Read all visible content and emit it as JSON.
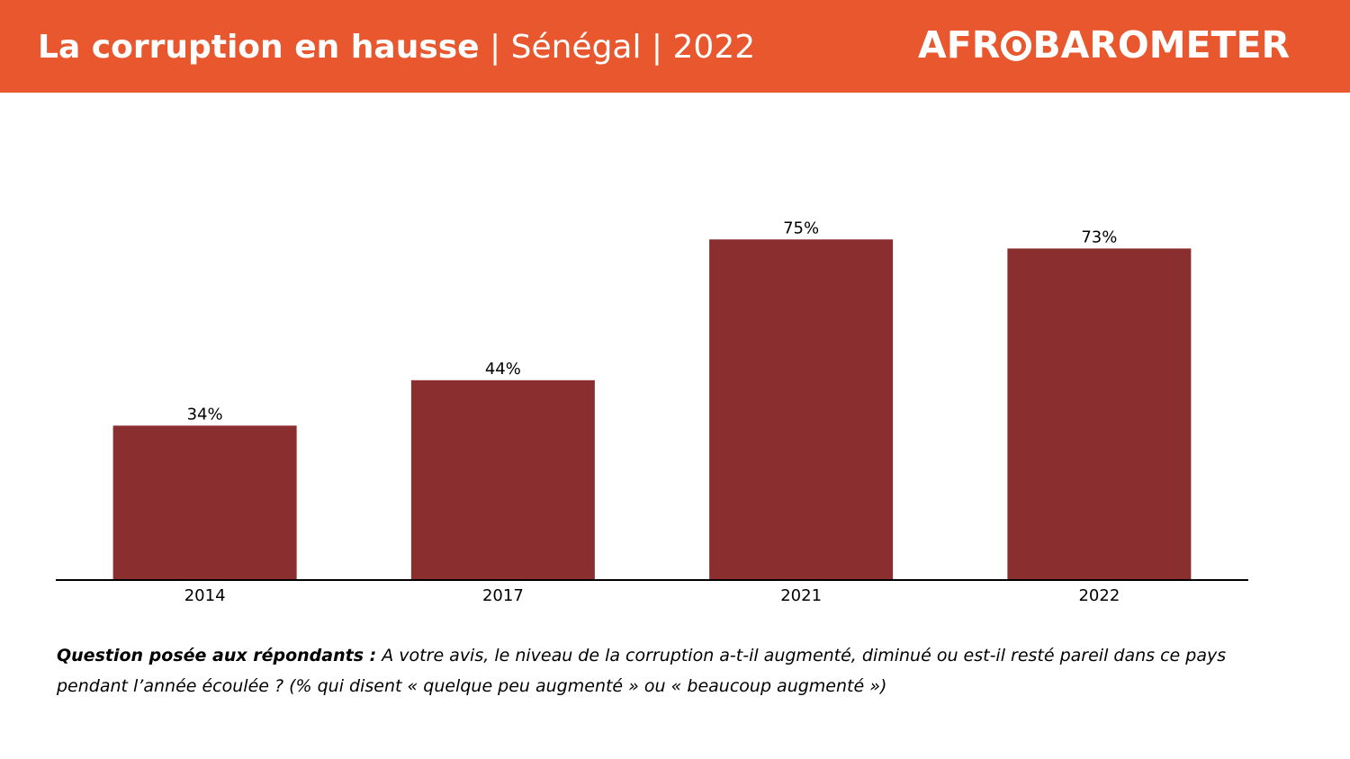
{
  "header": {
    "title_bold": "La corruption en hausse",
    "title_rest": " | Sénégal  | 2022",
    "logo_pre": "AFR",
    "logo_post": "BAROMETER",
    "bg_color": "#e8572e"
  },
  "chart_data": {
    "type": "bar",
    "categories": [
      "2014",
      "2017",
      "2021",
      "2022"
    ],
    "values": [
      34,
      44,
      75,
      73
    ],
    "data_labels": [
      "34%",
      "44%",
      "75%",
      "73%"
    ],
    "title": "",
    "xlabel": "",
    "ylabel": "",
    "ylim": [
      0,
      100
    ],
    "grid": false,
    "bar_color": "#8b2e2f"
  },
  "footnote": {
    "question_label": "Question posée aux répondants :",
    "question_text": " A votre avis, le niveau de la corruption a-t-il augmenté, diminué ou est-il resté pareil dans ce pays pendant l’année écoulée ? (% qui disent « quelque peu augmenté » ou « beaucoup augmenté »)"
  }
}
